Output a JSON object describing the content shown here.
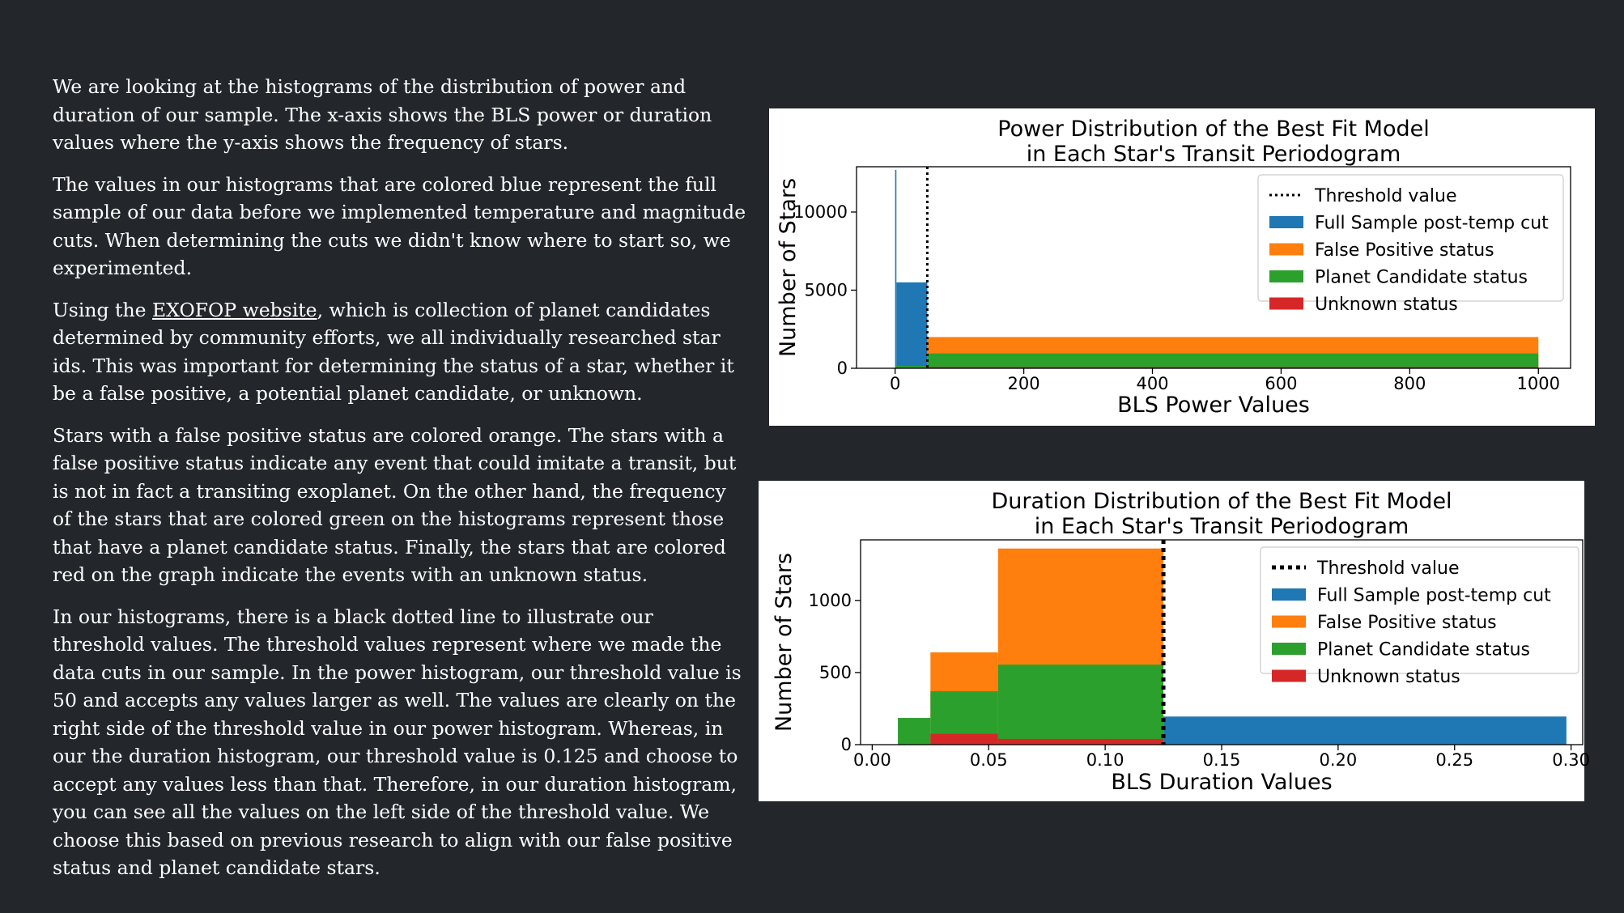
{
  "text": {
    "p1": "We are looking at the histograms of the distribution of power and duration of our sample. The x-axis shows the BLS power or duration values where the y-axis shows the frequency of stars.",
    "p2": "The values in our histograms that are colored blue represent the full sample of our data before we implemented temperature and magnitude cuts. When determining the cuts we didn't know where to start so, we experimented.",
    "p3_before": "Using the ",
    "p3_link": "EXOFOP website",
    "p3_after": ", which is collection of planet candidates determined by community efforts, we all individually researched star ids. This was important for determining the status of a star, whether it be a false positive, a potential planet candidate, or unknown.",
    "p4": "Stars with a false positive status are colored orange. The stars with a false positive status indicate any event that could imitate a transit, but is not in fact a transiting exoplanet. On the other hand, the frequency of the stars that are colored green on the histograms represent those that have a planet candidate status. Finally, the stars that are colored red on the graph indicate the events with an unknown status.",
    "p5": "In our histograms, there is a black dotted line to illustrate our threshold values. The threshold values represent where we made the data cuts in our sample. In the power histogram, our threshold value is 50 and accepts any values larger as well. The values are clearly on the right side of the threshold value in our power histogram. Whereas, in our the duration histogram, our threshold value is 0.125 and choose to accept any values less than that. Therefore, in our duration histogram, you can see all the values on the left side of the threshold value. We choose this based on previous research to align with our false positive status and planet candidate stars."
  },
  "colors": {
    "background": "#23272c",
    "text": "#ffffff",
    "full_sample": "#1f77b4",
    "false_positive": "#ff7f0e",
    "planet_candidate": "#2ca02c",
    "unknown": "#d62728",
    "threshold": "#000000"
  },
  "chart_data": [
    {
      "type": "bar",
      "title_lines": [
        "Power Distribution of the Best Fit Model",
        "in Each Star's Transit Periodogram"
      ],
      "xlabel": "BLS Power Values",
      "ylabel": "Number of Stars",
      "xlim": [
        -60,
        1050
      ],
      "ylim": [
        0,
        12900
      ],
      "xticks": [
        0,
        200,
        400,
        600,
        800,
        1000
      ],
      "xtick_labels": [
        "0",
        "200",
        "400",
        "600",
        "800",
        "1000"
      ],
      "yticks": [
        0,
        5000,
        10000
      ],
      "ytick_labels": [
        "0",
        "5000",
        "10000"
      ],
      "legend_position": "upper right",
      "threshold": {
        "name": "Threshold value",
        "x": 50,
        "style": "dotted"
      },
      "series": [
        {
          "name": "Full Sample post-temp cut",
          "color_key": "full_sample",
          "bins": [
            [
              0,
              2,
              12700
            ],
            [
              2,
              50,
              5500
            ]
          ]
        },
        {
          "name": "False Positive status",
          "color_key": "false_positive",
          "bins": [
            [
              50,
              1000,
              2000
            ]
          ]
        },
        {
          "name": "Planet Candidate status",
          "color_key": "planet_candidate",
          "bins": [
            [
              0,
              50,
              150
            ],
            [
              50,
              1000,
              950
            ]
          ]
        },
        {
          "name": "Unknown status",
          "color_key": "unknown",
          "bins": [
            [
              50,
              1000,
              80
            ]
          ]
        }
      ]
    },
    {
      "type": "bar",
      "title_lines": [
        "Duration Distribution of the Best Fit Model",
        "in Each Star's Transit Periodogram"
      ],
      "xlabel": "BLS Duration Values",
      "ylabel": "Number of Stars",
      "xlim": [
        -0.005,
        0.305
      ],
      "ylim": [
        0,
        1420
      ],
      "xticks": [
        0,
        0.05,
        0.1,
        0.15,
        0.2,
        0.25,
        0.3
      ],
      "xtick_labels": [
        "0.00",
        "0.05",
        "0.10",
        "0.15",
        "0.20",
        "0.25",
        "0.30"
      ],
      "yticks": [
        0,
        500,
        1000
      ],
      "ytick_labels": [
        "0",
        "500",
        "1000"
      ],
      "legend_position": "upper right",
      "threshold": {
        "name": "Threshold value",
        "x": 0.125,
        "style": "dotted"
      },
      "series": [
        {
          "name": "Full Sample post-temp cut",
          "color_key": "full_sample",
          "bins": [
            [
              0.125,
              0.298,
              195
            ]
          ]
        },
        {
          "name": "False Positive status",
          "color_key": "false_positive",
          "bins": [
            [
              0.025,
              0.054,
              640
            ],
            [
              0.054,
              0.125,
              1360
            ]
          ]
        },
        {
          "name": "Planet Candidate status",
          "color_key": "planet_candidate",
          "bins": [
            [
              0.011,
              0.025,
              185
            ],
            [
              0.025,
              0.054,
              370
            ],
            [
              0.054,
              0.125,
              555
            ]
          ]
        },
        {
          "name": "Unknown status",
          "color_key": "unknown",
          "bins": [
            [
              0.025,
              0.054,
              75
            ],
            [
              0.054,
              0.125,
              40
            ]
          ]
        }
      ]
    }
  ]
}
